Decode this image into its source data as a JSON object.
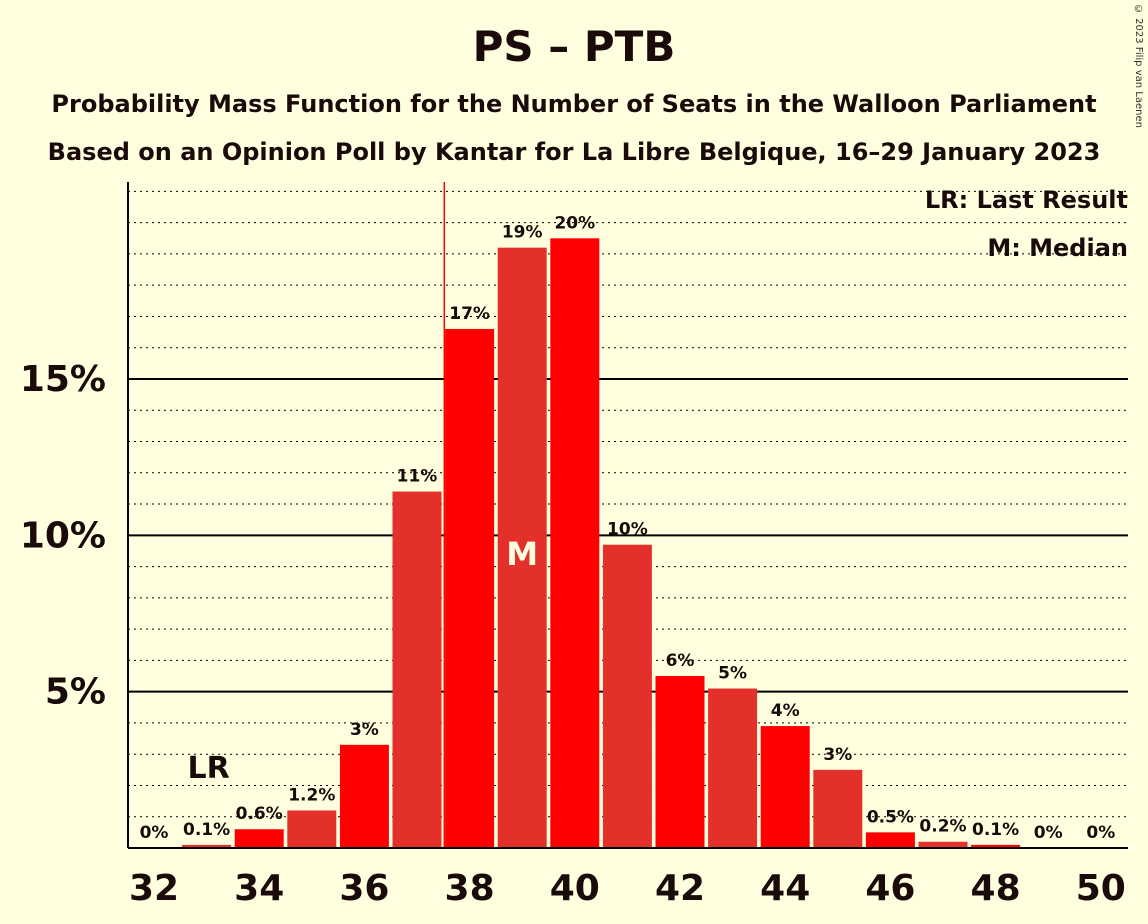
{
  "title": "PS – PTB",
  "subtitle_1": "Probability Mass Function for the Number of Seats in the Walloon Parliament",
  "subtitle_2": "Based on an Opinion Poll by Kantar for La Libre Belgique, 16–29 January 2023",
  "copyright": "© 2023 Filip van Laenen",
  "legend": {
    "last_result": "LR: Last Result",
    "median": "M: Median"
  },
  "chart_data": {
    "type": "bar",
    "x": [
      32,
      33,
      34,
      35,
      36,
      37,
      38,
      39,
      40,
      41,
      42,
      43,
      44,
      45,
      46,
      47,
      48,
      49,
      50
    ],
    "values": [
      0,
      0.1,
      0.6,
      1.2,
      3.3,
      11.4,
      16.6,
      19.2,
      19.5,
      9.7,
      5.5,
      5.1,
      3.9,
      2.5,
      0.5,
      0.2,
      0.1,
      0,
      0
    ],
    "data_labels": [
      "0%",
      "0.1%",
      "0.6%",
      "1.2%",
      "3%",
      "11%",
      "17%",
      "19%",
      "20%",
      "10%",
      "6%",
      "5%",
      "4%",
      "3%",
      "0.5%",
      "0.2%",
      "0.1%",
      "0%",
      "0%"
    ],
    "x_tick_labels": [
      "32",
      "34",
      "36",
      "38",
      "40",
      "42",
      "44",
      "46",
      "48",
      "50"
    ],
    "y_tick_labels": [
      "5%",
      "10%",
      "15%"
    ],
    "y_ticks": [
      5,
      10,
      15
    ],
    "ylim": [
      0,
      21.3
    ],
    "last_result_seat": 33,
    "last_result_label": "LR",
    "median_seat": 39,
    "median_label": "M",
    "colors": {
      "bar_primary": "#ff0000",
      "bar_secondary": "#e3302a",
      "background": "#ffffe0",
      "median_line": "#ff0000"
    }
  }
}
